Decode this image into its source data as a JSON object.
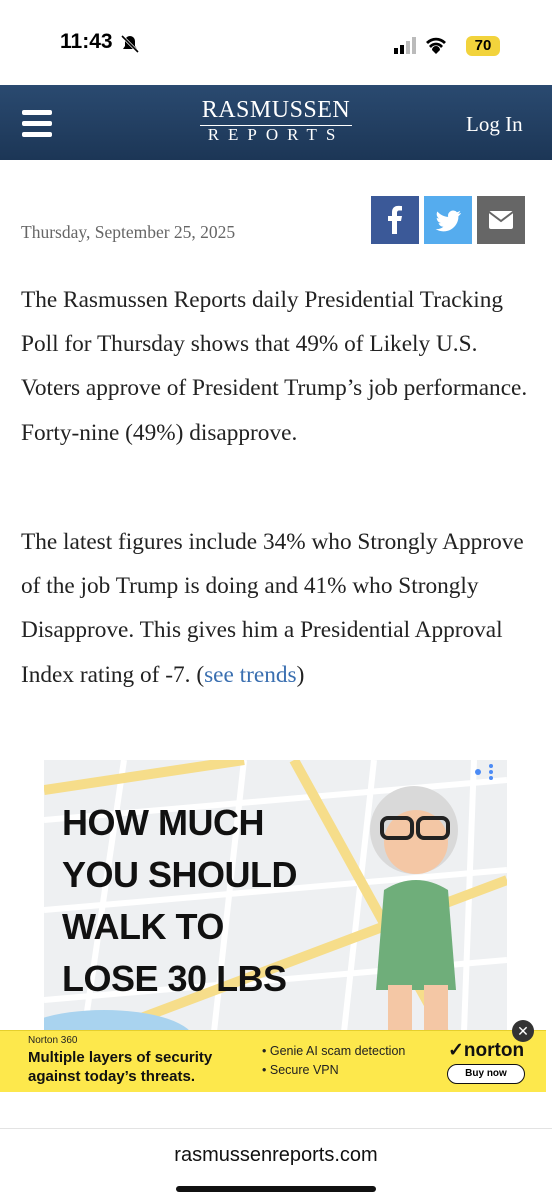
{
  "status_bar": {
    "time": "11:43",
    "battery": "70"
  },
  "header": {
    "logo_top": "RASMUSSEN",
    "logo_bottom": "REPORTS",
    "login": "Log In"
  },
  "article": {
    "date": "Thursday, September 25, 2025",
    "paragraph_1": "The Rasmussen Reports daily Presidential Tracking Poll for Thursday shows that 49% of Likely U.S. Voters approve of President Trump’s job performance. Forty-nine (49%) disapprove.",
    "paragraph_2": {
      "before": "The latest figures include 34% who Strongly Approve of the job Trump is doing and 41% who Strongly Disapprove. This gives him a Presidential Approval Index rating of -7. (",
      "link": "see trends",
      "after": ")"
    }
  },
  "ad": {
    "lines": [
      "HOW MUCH",
      "YOU SHOULD",
      "WALK TO",
      "LOSE 30 LBS"
    ]
  },
  "banner": {
    "brand_small": "Norton 360",
    "headline": "Multiple layers of security against today’s threats.",
    "bullets": [
      "Genie AI scam detection",
      "Secure VPN"
    ],
    "logo": "norton",
    "button": "Buy now"
  },
  "footer": {
    "url": "rasmussenreports.com"
  }
}
